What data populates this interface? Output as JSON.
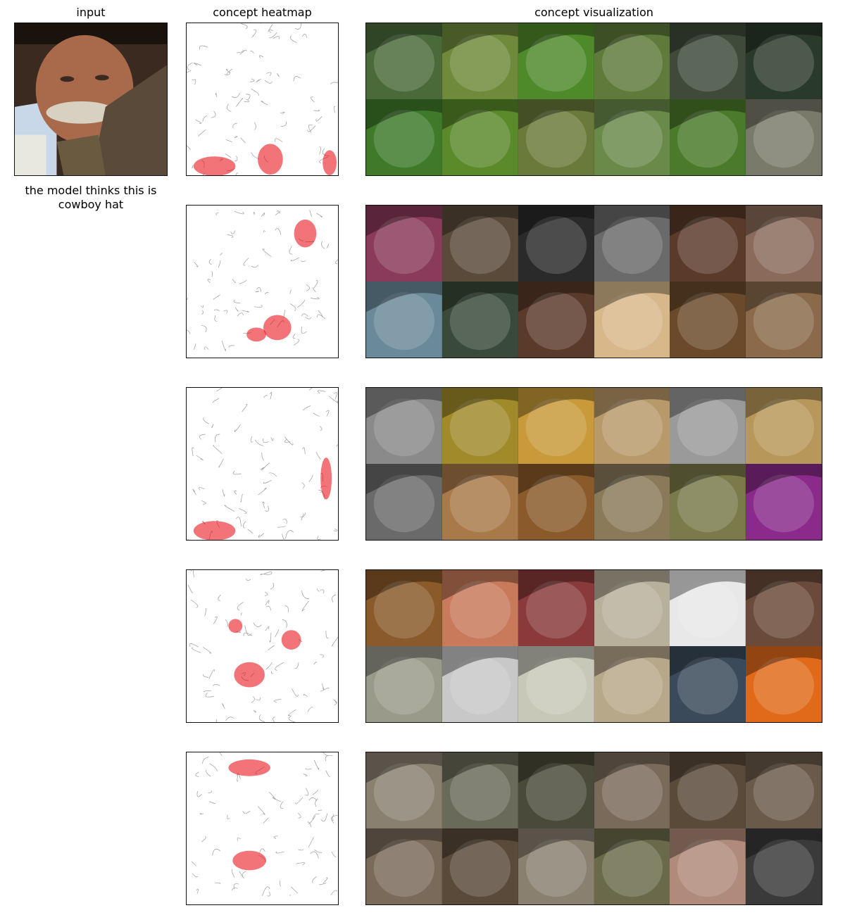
{
  "headers": {
    "input": "input",
    "heatmap": "concept heatmap",
    "visualization": "concept visualization"
  },
  "prediction_caption": "the model thinks this is cowboy hat",
  "heatmap_color": "#e8000a",
  "concepts": [
    {
      "tiles": [
        "butterfly-icon",
        "butterfly-icon",
        "butterfly-icon",
        "butterfly-icon",
        "butterfly-icon",
        "butterfly-icon",
        "butterfly-icon",
        "butterfly-icon",
        "butterfly-icon",
        "butterfly-icon",
        "butterfly-icon",
        "butterfly-icon"
      ],
      "colors": [
        "#4a6a3a",
        "#6f8a3a",
        "#4f8a2a",
        "#5f7a3a",
        "#3f4a3a",
        "#2a3a2a",
        "#3f7a2a",
        "#5a8a2a",
        "#6a7a3a",
        "#6a8a4a",
        "#4a7a2a",
        "#7a7a6a"
      ]
    },
    {
      "tiles": [
        "face-icon",
        "face-icon",
        "face-icon",
        "face-icon",
        "hair-icon",
        "face-icon",
        "face-icon",
        "face-icon",
        "face-icon",
        "doll-face-icon",
        "dog-face-icon",
        "dog-face-icon"
      ],
      "colors": [
        "#8a3a5a",
        "#5a4a3a",
        "#2a2a2a",
        "#6a6a6a",
        "#5a3a2a",
        "#8a6a5a",
        "#6a8a9a",
        "#3a4a3a",
        "#5a3a2a",
        "#d8b88a",
        "#6a4a2a",
        "#8a6a4a"
      ]
    },
    {
      "tiles": [
        "straw-icon",
        "straw-icon",
        "broom-icon",
        "broom-icon",
        "straw-icon",
        "broom-icon",
        "straw-icon",
        "straw-icon",
        "hay-field-icon",
        "hay-bale-icon",
        "broom-icon",
        "broom-icon"
      ],
      "colors": [
        "#8a8a8a",
        "#a08a2a",
        "#c89a3a",
        "#b89a6a",
        "#9a9a9a",
        "#b8985a",
        "#6a6a6a",
        "#a87a4a",
        "#8a5a2a",
        "#8a7a5a",
        "#7a7a4a",
        "#8a2a8a"
      ]
    },
    {
      "tiles": [
        "rope-icon",
        "yarn-icon",
        "rope-icon",
        "bolo-tie-icon",
        "bolo-tie-icon",
        "knot-icon",
        "bolo-tie-icon",
        "knot-icon",
        "bolo-tie-icon",
        "rope-icon",
        "rope-icon",
        "knot-icon"
      ],
      "colors": [
        "#8a5a2a",
        "#c87a5a",
        "#8a3a3a",
        "#b8b09a",
        "#e8e8e8",
        "#6a4a3a",
        "#9a9a8a",
        "#c8c8c8",
        "#c8c8b8",
        "#b8a88a",
        "#3a4a5a",
        "#e06a1a"
      ]
    },
    {
      "tiles": [
        "elephant-icon",
        "elephant-icon",
        "buffalo-icon",
        "elephant-icon",
        "elephant-icon",
        "elephant-icon",
        "elephant-icon",
        "elephant-icon",
        "elephant-icon",
        "elephant-icon",
        "hat-woman-icon",
        "buffalo-icon"
      ],
      "colors": [
        "#8a8070",
        "#6a6a5a",
        "#4a4a3a",
        "#7a6a5a",
        "#5a4a3a",
        "#6a5a4a",
        "#7a6a5a",
        "#5a4a3a",
        "#8a8070",
        "#6a6a4a",
        "#b08a7a",
        "#3a3a3a"
      ]
    }
  ]
}
